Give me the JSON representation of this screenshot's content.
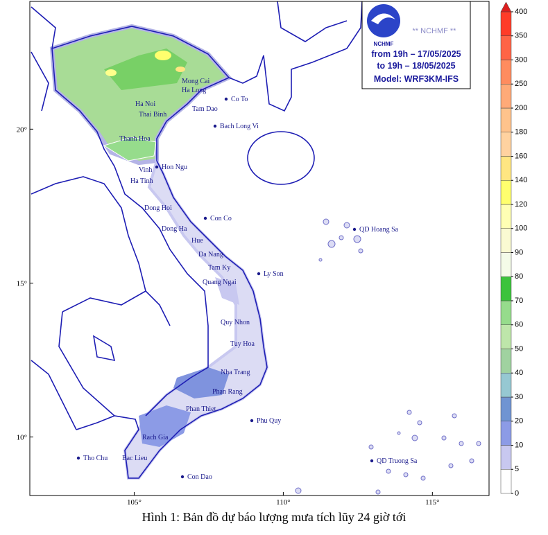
{
  "map": {
    "xlim": [
      101.5,
      116.9
    ],
    "ylim": [
      8.1,
      24.15
    ],
    "xticks": [
      {
        "value": 105,
        "label": "105°"
      },
      {
        "value": 110,
        "label": "110°"
      },
      {
        "value": 115,
        "label": "115°"
      }
    ],
    "yticks": [
      {
        "value": 20,
        "label": "20°"
      },
      {
        "value": 15,
        "label": "15°"
      },
      {
        "value": 10,
        "label": "10°"
      }
    ]
  },
  "info_box": {
    "logo": "NCHMF",
    "brand": "** NCHMF **",
    "lines": [
      "from 19h – 17/05/2025",
      "to 19h – 18/05/2025",
      "Model: WRF3KM-IFS"
    ]
  },
  "places": [
    "Mong Cai",
    "Ha Long",
    "Co To",
    "Ha Noi",
    "Tam Dao",
    "Thai Binh",
    "Bach Long Vi",
    "Thanh Hoa",
    "Hon Ngu",
    "Vinh",
    "Ha Tinh",
    "Dong Hoi",
    "Con Co",
    "Dong Ha",
    "QD Hoang Sa",
    "Hue",
    "Da Nang",
    "Tam Ky",
    "Ly Son",
    "Quang Ngai",
    "Quy Nhon",
    "Tuy Hoa",
    "Nha Trang",
    "Phan Rang",
    "Phan Thiet",
    "Phu Quy",
    "Rach Gia",
    "Tho Chu",
    "Bac Lieu",
    "Con Dao",
    "QD Truong Sa"
  ],
  "legend": {
    "levels": [
      0,
      5,
      10,
      20,
      30,
      40,
      50,
      60,
      70,
      80,
      90,
      100,
      120,
      140,
      160,
      180,
      200,
      250,
      300,
      350,
      400
    ],
    "colors": [
      "#ffffff",
      "#c8c8f0",
      "#8c9be6",
      "#7094d2",
      "#96c8d2",
      "#a0d2a0",
      "#bee6aa",
      "#96dc8c",
      "#3cc33c",
      "#f4fbe8",
      "#fafad2",
      "#ffffb4",
      "#ffff6e",
      "#ffe682",
      "#ffd2a0",
      "#ffc38c",
      "#ffaa78",
      "#ff8c5f",
      "#ff6446",
      "#ff3c28"
    ],
    "over_color": "#dc1e1e"
  },
  "caption": "Hình 1: Bản đồ dự báo lượng mưa tích lũy 24 giờ tới"
}
